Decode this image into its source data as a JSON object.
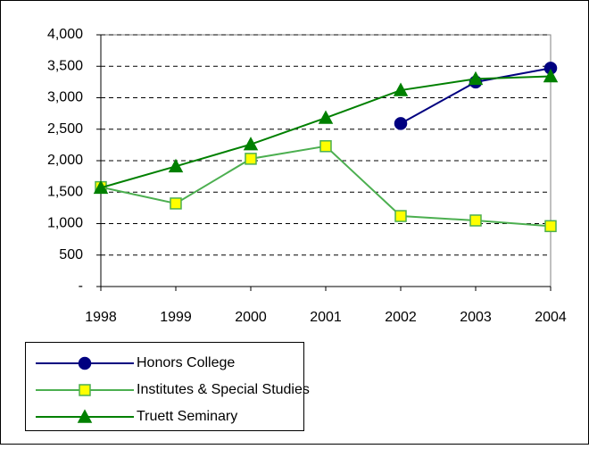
{
  "chart_data": {
    "type": "line",
    "categories": [
      "1998",
      "1999",
      "2000",
      "2001",
      "2002",
      "2003",
      "2004"
    ],
    "series": [
      {
        "name": "Honors College",
        "color": "#000080",
        "marker": "circle",
        "marker_color": "#000080",
        "values": [
          null,
          null,
          null,
          null,
          2590,
          3250,
          3470
        ]
      },
      {
        "name": "Institutes & Special Studies",
        "color": "#4caf50",
        "marker": "square",
        "marker_color": "#ffff00",
        "values": [
          1580,
          1320,
          2030,
          2230,
          1120,
          1050,
          960
        ]
      },
      {
        "name": "Truett Seminary",
        "color": "#008000",
        "marker": "triangle",
        "marker_color": "#008000",
        "values": [
          1570,
          1910,
          2260,
          2680,
          3120,
          3300,
          3340
        ]
      }
    ],
    "ylim": [
      0,
      4000
    ],
    "yticks": [
      {
        "value": 0,
        "label": "-"
      },
      500,
      {
        "value": 1000,
        "label": "1,000"
      },
      {
        "value": 1500,
        "label": "1,500"
      },
      {
        "value": 2000,
        "label": "2,000"
      },
      {
        "value": 2500,
        "label": "2,500"
      },
      {
        "value": 3000,
        "label": "3,000"
      },
      {
        "value": 3500,
        "label": "3,500"
      },
      {
        "value": 4000,
        "label": "4,000"
      }
    ],
    "grid": true,
    "legend": "bottom-left"
  }
}
